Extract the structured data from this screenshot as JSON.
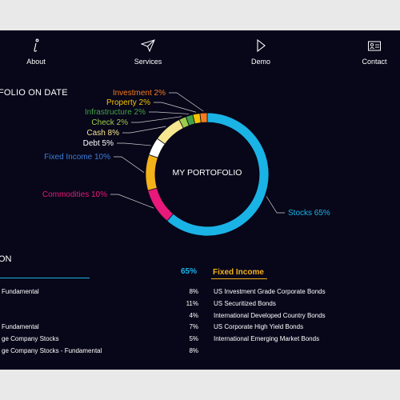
{
  "nav": [
    {
      "label": "About",
      "icon": "info-icon"
    },
    {
      "label": "Services",
      "icon": "paper-plane-icon"
    },
    {
      "label": "Demo",
      "icon": "play-icon"
    },
    {
      "label": "Contact",
      "icon": "contact-card-icon"
    }
  ],
  "section_title": "FOLIO ON DATE",
  "chart_data": {
    "type": "pie",
    "title": "MY PORTOFOLIO",
    "slices": [
      {
        "label": "Stocks 65%",
        "value": 65,
        "color": "#1ab3e6"
      },
      {
        "label": "Commodities 10%",
        "value": 10,
        "color": "#e8197a"
      },
      {
        "label": "Fixed Income 10%",
        "value": 10,
        "color": "#f2b21a"
      },
      {
        "label": "Debt 5%",
        "value": 5,
        "color": "#ffffff"
      },
      {
        "label": "Cash 8%",
        "value": 8,
        "color": "#f6e690"
      },
      {
        "label": "Check 2%",
        "value": 2,
        "color": "#9ccc4a"
      },
      {
        "label": "Infrastructure 2%",
        "value": 2,
        "color": "#43a047"
      },
      {
        "label": "Property 2%",
        "value": 2,
        "color": "#f5c400"
      },
      {
        "label": "Investment 2%",
        "value": 2,
        "color": "#f47b20"
      }
    ]
  },
  "bottom": {
    "title": "ON",
    "stocks_pct": "65%",
    "left_rows": [
      {
        "name": "Fundamental",
        "pct": "8%"
      },
      {
        "name": "",
        "pct": "11%"
      },
      {
        "name": "",
        "pct": "4%"
      },
      {
        "name": "Fundamental",
        "pct": "7%"
      },
      {
        "name": "ge Company Stocks",
        "pct": "5%"
      },
      {
        "name": "ge Company Stocks - Fundamental",
        "pct": "8%"
      }
    ],
    "fixed_income_title": "Fixed Income",
    "right_rows": [
      "US Investment Grade Corporate Bonds",
      "US Securitized Bonds",
      "International Developed Country Bonds",
      "US Corporate High Yield Bonds",
      "International Emerging Market Bonds"
    ]
  }
}
